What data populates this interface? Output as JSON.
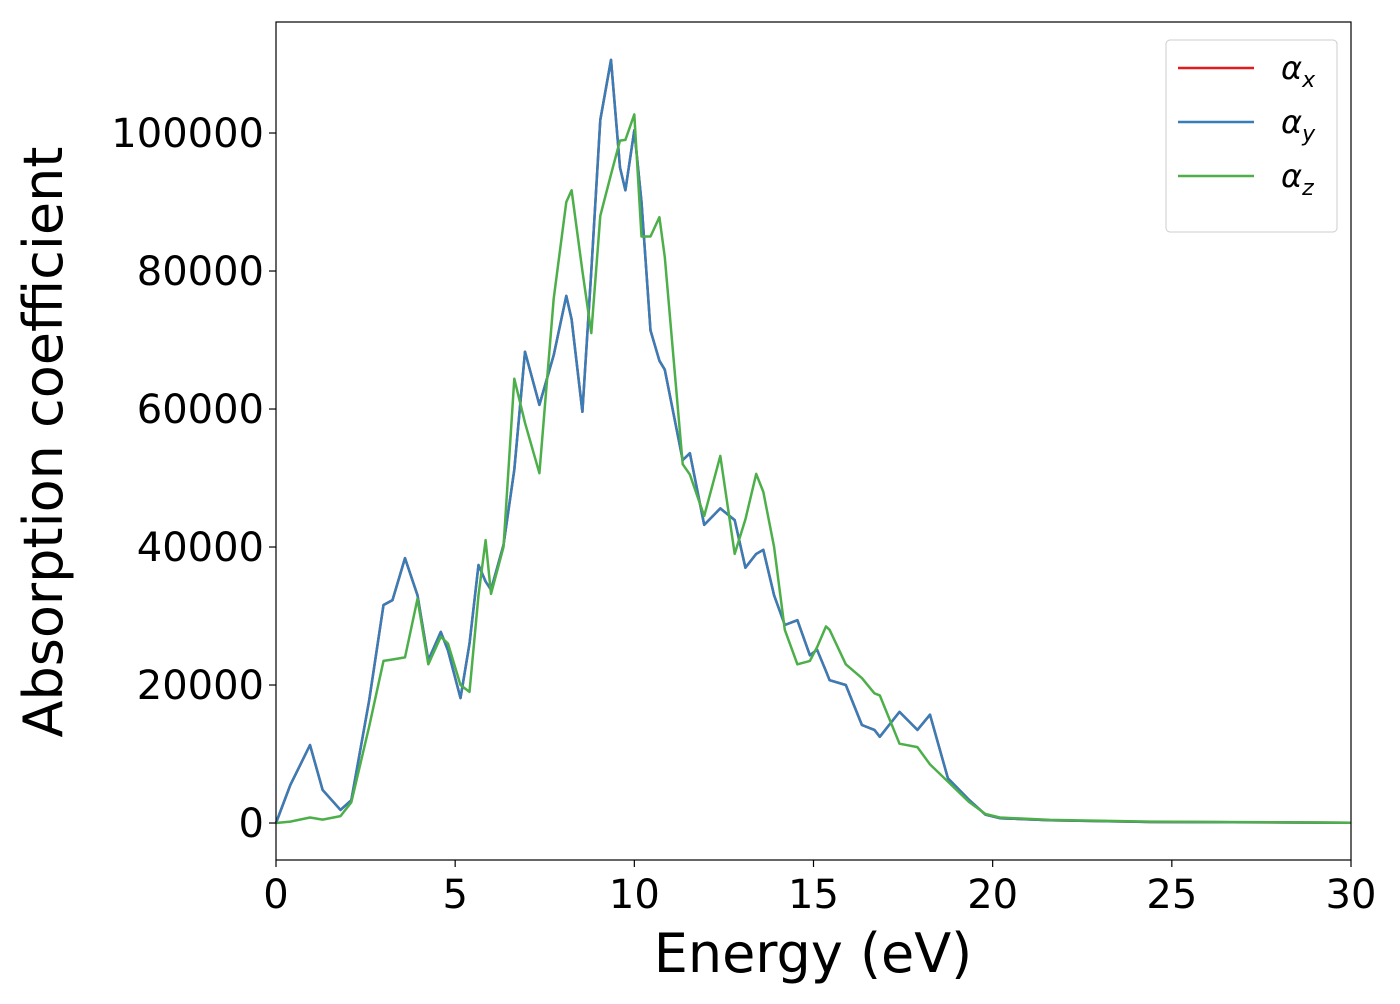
{
  "chart_data": {
    "type": "line",
    "x_label": "Energy (eV)",
    "y_label": "Absorption coefficient",
    "x": [
      0,
      0.4,
      0.95,
      1.3,
      1.8,
      2.1,
      2.6,
      3.0,
      3.25,
      3.6,
      3.95,
      4.25,
      4.6,
      4.8,
      5.15,
      5.4,
      5.65,
      5.85,
      6.0,
      6.35,
      6.65,
      6.95,
      7.35,
      7.75,
      8.1,
      8.25,
      8.55,
      8.8,
      9.05,
      9.35,
      9.6,
      9.75,
      10.0,
      10.2,
      10.45,
      10.7,
      10.85,
      11.35,
      11.55,
      11.95,
      12.4,
      12.8,
      13.1,
      13.4,
      13.6,
      13.9,
      14.2,
      14.55,
      14.9,
      15.1,
      15.35,
      15.45,
      15.9,
      16.35,
      16.7,
      16.85,
      17.4,
      17.9,
      18.25,
      18.75,
      19.35,
      19.8,
      20.2,
      21.6,
      24.4,
      30
    ],
    "series": [
      {
        "name": "αx",
        "color": "#e41a1c",
        "values": [
          0,
          5500,
          11300,
          4800,
          1900,
          3300,
          17800,
          31600,
          32300,
          38400,
          33000,
          23600,
          27700,
          25000,
          18100,
          26000,
          37400,
          35000,
          33800,
          40300,
          51200,
          68300,
          60600,
          67800,
          76400,
          73000,
          59600,
          80000,
          101900,
          110600,
          95000,
          91700,
          100400,
          90000,
          71400,
          67000,
          65700,
          52600,
          53600,
          43200,
          45600,
          43900,
          37000,
          39000,
          39600,
          33000,
          28700,
          29400,
          24300,
          25100,
          22000,
          20700,
          20000,
          14200,
          13500,
          12500,
          16100,
          13500,
          15700,
          6500,
          3300,
          1200,
          700,
          400,
          150,
          50
        ]
      },
      {
        "name": "αy",
        "color": "#377eb8",
        "values": [
          0,
          5500,
          11300,
          4800,
          1900,
          3300,
          17800,
          31600,
          32300,
          38400,
          33000,
          23600,
          27700,
          25000,
          18100,
          26000,
          37400,
          35000,
          33800,
          40300,
          51200,
          68300,
          60600,
          67800,
          76400,
          73000,
          59600,
          80000,
          101900,
          110600,
          95000,
          91700,
          100400,
          90000,
          71400,
          67000,
          65700,
          52600,
          53600,
          43200,
          45600,
          43900,
          37000,
          39000,
          39600,
          33000,
          28700,
          29400,
          24300,
          25100,
          22000,
          20700,
          20000,
          14200,
          13500,
          12500,
          16100,
          13500,
          15700,
          6500,
          3300,
          1200,
          700,
          400,
          150,
          50
        ]
      },
      {
        "name": "αz",
        "color": "#4daf4a",
        "values": [
          0,
          200,
          800,
          500,
          1000,
          3000,
          14000,
          23500,
          23700,
          24000,
          32500,
          23000,
          27000,
          26000,
          20000,
          19000,
          33000,
          41000,
          33200,
          40000,
          64400,
          58000,
          50700,
          76000,
          90000,
          91700,
          80000,
          71000,
          88000,
          94000,
          98900,
          99000,
          102700,
          85000,
          85000,
          87800,
          82000,
          52000,
          50500,
          44500,
          53200,
          39000,
          44000,
          50600,
          48000,
          40000,
          28000,
          23000,
          23500,
          25500,
          28500,
          28000,
          23000,
          21000,
          18800,
          18500,
          11500,
          11000,
          8500,
          6000,
          3000,
          1300,
          800,
          450,
          200,
          50
        ]
      }
    ],
    "xlim": [
      0,
      30
    ],
    "xticks": [
      0,
      5,
      10,
      15,
      20,
      25,
      30
    ],
    "ylim": [
      -5360,
      116090
    ],
    "yticks": [
      0,
      20000,
      40000,
      60000,
      80000,
      100000
    ],
    "grid": false,
    "legend": "upper right"
  }
}
